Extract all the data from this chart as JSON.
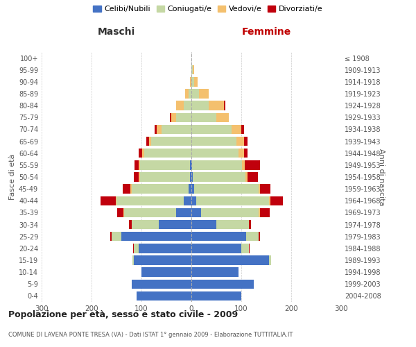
{
  "age_groups": [
    "0-4",
    "5-9",
    "10-14",
    "15-19",
    "20-24",
    "25-29",
    "30-34",
    "35-39",
    "40-44",
    "45-49",
    "50-54",
    "55-59",
    "60-64",
    "65-69",
    "70-74",
    "75-79",
    "80-84",
    "85-89",
    "90-94",
    "95-99",
    "100+"
  ],
  "birth_years": [
    "2004-2008",
    "1999-2003",
    "1994-1998",
    "1989-1993",
    "1984-1988",
    "1979-1983",
    "1974-1978",
    "1969-1973",
    "1964-1968",
    "1959-1963",
    "1954-1958",
    "1949-1953",
    "1944-1948",
    "1939-1943",
    "1934-1938",
    "1929-1933",
    "1924-1928",
    "1919-1923",
    "1914-1918",
    "1909-1913",
    "≤ 1908"
  ],
  "colors": {
    "celibi": "#4472C4",
    "coniugati": "#C5D8A4",
    "vedovi": "#F4C06E",
    "divorziati": "#C0000C"
  },
  "males": {
    "celibi": [
      110,
      120,
      100,
      115,
      105,
      140,
      65,
      30,
      15,
      5,
      3,
      3,
      0,
      0,
      0,
      0,
      0,
      0,
      0,
      0,
      0
    ],
    "coniugati": [
      0,
      0,
      0,
      3,
      10,
      20,
      55,
      105,
      135,
      115,
      100,
      100,
      95,
      80,
      60,
      30,
      15,
      5,
      0,
      0,
      0
    ],
    "vedovi": [
      0,
      0,
      0,
      0,
      0,
      0,
      0,
      1,
      2,
      2,
      2,
      3,
      3,
      5,
      10,
      10,
      15,
      8,
      3,
      0,
      0
    ],
    "divorziati": [
      0,
      0,
      0,
      0,
      1,
      2,
      5,
      12,
      30,
      15,
      10,
      8,
      7,
      5,
      3,
      3,
      0,
      0,
      0,
      0,
      0
    ]
  },
  "females": {
    "celibi": [
      100,
      125,
      95,
      155,
      100,
      110,
      50,
      20,
      10,
      5,
      3,
      2,
      0,
      0,
      0,
      0,
      0,
      0,
      0,
      0,
      0
    ],
    "coniugati": [
      0,
      0,
      0,
      5,
      15,
      25,
      65,
      115,
      145,
      130,
      105,
      100,
      95,
      90,
      80,
      50,
      35,
      15,
      5,
      3,
      0
    ],
    "vedovi": [
      0,
      0,
      0,
      0,
      0,
      0,
      0,
      2,
      3,
      3,
      5,
      5,
      10,
      15,
      20,
      25,
      30,
      20,
      8,
      3,
      0
    ],
    "divorziati": [
      0,
      0,
      0,
      0,
      2,
      2,
      5,
      20,
      25,
      20,
      20,
      30,
      8,
      8,
      5,
      0,
      3,
      0,
      0,
      0,
      0
    ]
  },
  "title": "Popolazione per età, sesso e stato civile - 2009",
  "subtitle": "COMUNE DI LAVENA PONTE TRESA (VA) - Dati ISTAT 1° gennaio 2009 - Elaborazione TUTTITALIA.IT",
  "xlabel_left": "Maschi",
  "xlabel_right": "Femmine",
  "ylabel_left": "Fasce di età",
  "ylabel_right": "Anni di nascita",
  "xlim": 300,
  "bg_color": "#ffffff",
  "grid_color": "#cccccc"
}
